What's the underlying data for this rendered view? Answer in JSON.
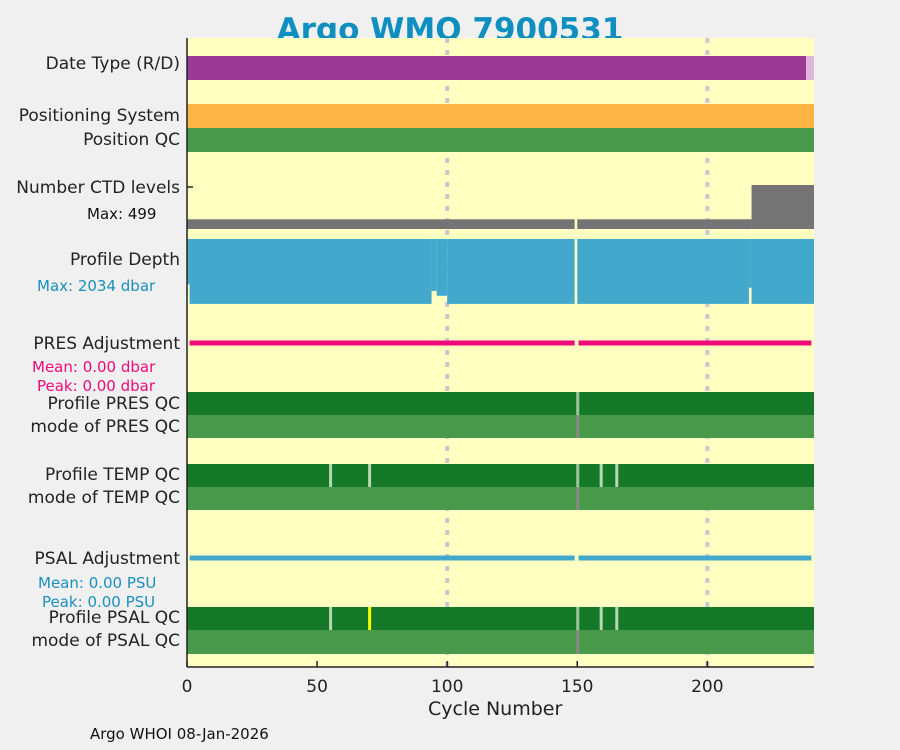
{
  "title": "Argo WMO 7900531",
  "footer": "Argo WHOI 08-Jan-2026",
  "chart_data": {
    "type": "table",
    "xlabel": "Cycle Number",
    "xlim": [
      0,
      241
    ],
    "xticks": [
      "0",
      "50",
      "100",
      "150",
      "200"
    ],
    "gridlines_x": [
      100,
      200
    ],
    "rows": {
      "date_type": {
        "label": "Date Type (R/D)",
        "segments": [
          {
            "from": 0,
            "to": 238,
            "value": "D",
            "color": "#9b3a95"
          },
          {
            "from": 238,
            "to": 241,
            "value": "R",
            "color": "#dfb5da"
          }
        ]
      },
      "positioning": {
        "label": "Positioning System",
        "color": "#fdb444"
      },
      "position_qc": {
        "label": "Position QC",
        "color": "#48994a"
      },
      "ctd_levels": {
        "label": "Number CTD levels",
        "max_label": "Max: 499",
        "max": 499,
        "color": "#747474",
        "segments": [
          {
            "from": 0,
            "to": 149,
            "value": 110
          },
          {
            "from": 150,
            "to": 217,
            "value": 110
          },
          {
            "from": 217,
            "to": 241,
            "value": 499
          }
        ]
      },
      "profile_depth": {
        "label": "Profile Depth",
        "max_label": "Max: 2034 dbar",
        "max": 2034,
        "color": "#43a9cc",
        "segments": [
          {
            "from": 0,
            "to": 1,
            "value": 1400
          },
          {
            "from": 1,
            "to": 94,
            "value": 2000
          },
          {
            "from": 94,
            "to": 96,
            "value": 1600
          },
          {
            "from": 96,
            "to": 100,
            "value": 1750
          },
          {
            "from": 100,
            "to": 149,
            "value": 2000
          },
          {
            "from": 150,
            "to": 216,
            "value": 2000
          },
          {
            "from": 216,
            "to": 217,
            "value": 1500
          },
          {
            "from": 217,
            "to": 241,
            "value": 2000
          }
        ]
      },
      "pres_adjustment": {
        "label": "PRES Adjustment",
        "mean_label": "Mean: 0.00 dbar",
        "peak_label": "Peak: 0.00 dbar",
        "color": "#ee0a7a",
        "gap": [
          149,
          150
        ]
      },
      "profile_pres_qc": {
        "label": "Profile PRES QC",
        "color": "#167829",
        "marks": [
          {
            "cycle": 150,
            "color": "#9ac89a"
          }
        ]
      },
      "mode_pres_qc": {
        "label": "mode of PRES QC",
        "color": "#48994a",
        "marks": [
          {
            "cycle": 150,
            "color": "#888888"
          }
        ]
      },
      "profile_temp_qc": {
        "label": "Profile TEMP QC",
        "color": "#167829",
        "marks": [
          {
            "cycle": 55,
            "color": "#b8d8b0"
          },
          {
            "cycle": 70,
            "color": "#b8d8b0"
          },
          {
            "cycle": 150,
            "color": "#9ac89a"
          },
          {
            "cycle": 159,
            "color": "#b8d8b0"
          },
          {
            "cycle": 165,
            "color": "#b8d8b0"
          }
        ]
      },
      "mode_temp_qc": {
        "label": "mode of TEMP QC",
        "color": "#48994a",
        "marks": [
          {
            "cycle": 150,
            "color": "#888888"
          }
        ]
      },
      "psal_adjustment": {
        "label": "PSAL Adjustment",
        "mean_label": "Mean: 0.00 PSU",
        "peak_label": "Peak: 0.00 PSU",
        "color": "#43a9cc",
        "gap": [
          149,
          150
        ]
      },
      "profile_psal_qc": {
        "label": "Profile PSAL QC",
        "color": "#167829",
        "marks": [
          {
            "cycle": 55,
            "color": "#b8d8b0"
          },
          {
            "cycle": 70,
            "color": "#ffff00"
          },
          {
            "cycle": 150,
            "color": "#9ac89a"
          },
          {
            "cycle": 159,
            "color": "#b8d8b0"
          },
          {
            "cycle": 165,
            "color": "#b8d8b0"
          }
        ]
      },
      "mode_psal_qc": {
        "label": "mode of PSAL QC",
        "color": "#48994a",
        "marks": [
          {
            "cycle": 150,
            "color": "#888888"
          }
        ]
      }
    }
  }
}
